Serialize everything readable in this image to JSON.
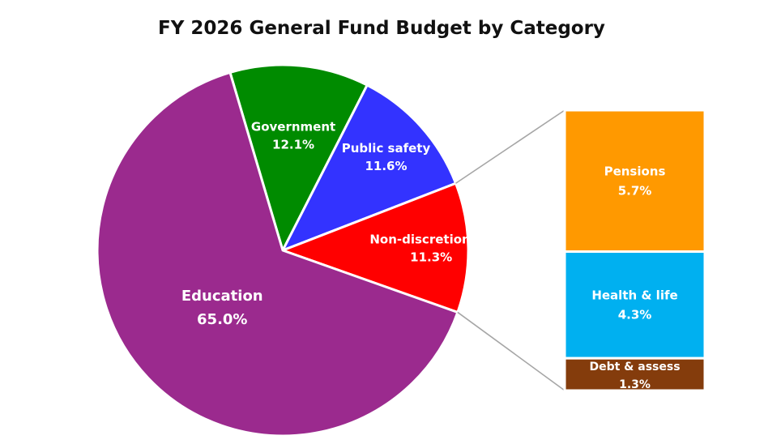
{
  "chart_data": {
    "type": "pie",
    "title": "FY 2026 General Fund Budget by Category",
    "slices": [
      {
        "label": "Government",
        "value_text": "12.1%",
        "value": 12.1,
        "color": "#008B00"
      },
      {
        "label": "Public safety",
        "value_text": "11.6%",
        "value": 11.6,
        "color": "#3333FF"
      },
      {
        "label": "Non-discretionary",
        "value_text": "11.3%",
        "value": 11.3,
        "color": "#FF0000"
      },
      {
        "label": "Education",
        "value_text": "65.0%",
        "value": 65.0,
        "color": "#9B2A8E"
      }
    ],
    "breakout": {
      "of": "Non-discretionary",
      "type": "stacked-bar",
      "segments": [
        {
          "label": "Pensions",
          "value_text": "5.7%",
          "value": 5.7,
          "color": "#FF9900"
        },
        {
          "label": "Health & life",
          "value_text": "4.3%",
          "value": 4.3,
          "color": "#00B0F0"
        },
        {
          "label": "Debt & assess",
          "value_text": "1.3%",
          "value": 1.3,
          "color": "#843C0C"
        }
      ]
    }
  }
}
